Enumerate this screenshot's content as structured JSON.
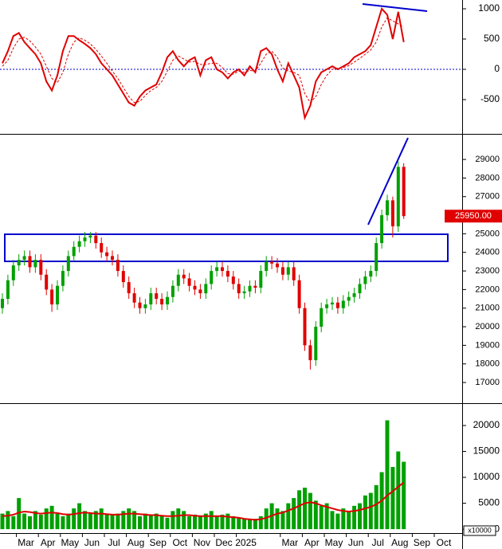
{
  "chart_data": [
    {
      "type": "line",
      "ylim": [
        -1066,
        1145
      ],
      "yticks": [
        -500,
        0,
        500,
        1000
      ],
      "zero_line_color": "#0000cc",
      "series": [
        {
          "color": "#e00000",
          "width": 2,
          "dashed": false,
          "values": [
            100,
            300,
            550,
            600,
            450,
            350,
            250,
            100,
            -200,
            -350,
            -100,
            300,
            550,
            550,
            480,
            420,
            350,
            250,
            100,
            0,
            -100,
            -250,
            -400,
            -550,
            -600,
            -450,
            -350,
            -300,
            -250,
            -50,
            200,
            300,
            150,
            50,
            150,
            200,
            -100,
            150,
            200,
            0,
            -50,
            -150,
            -50,
            0,
            -100,
            50,
            -50,
            300,
            350,
            250,
            0,
            -200,
            100,
            -100,
            -300,
            -800,
            -600,
            -200,
            -50,
            0,
            50,
            0,
            50,
            100,
            200,
            250,
            300,
            400,
            700,
            1000,
            900,
            500,
            950,
            450
          ]
        },
        {
          "color": "#e00000",
          "width": 1,
          "dashed": true,
          "values": [
            50,
            150,
            350,
            500,
            530,
            470,
            370,
            250,
            50,
            -150,
            -220,
            -50,
            250,
            450,
            520,
            480,
            420,
            330,
            220,
            100,
            -30,
            -150,
            -300,
            -450,
            -550,
            -530,
            -430,
            -350,
            -300,
            -200,
            -30,
            150,
            220,
            170,
            120,
            130,
            80,
            80,
            100,
            100,
            30,
            -70,
            -80,
            -30,
            -50,
            -20,
            -30,
            100,
            250,
            300,
            200,
            20,
            -30,
            -50,
            -100,
            -400,
            -550,
            -450,
            -250,
            -100,
            0,
            20,
            30,
            60,
            120,
            180,
            250,
            320,
            450,
            700,
            850,
            800,
            750,
            700
          ]
        }
      ]
    },
    {
      "type": "candlestick",
      "ylim": [
        15930,
        30290
      ],
      "yticks": [
        17000,
        18000,
        19000,
        20000,
        21000,
        22000,
        23000,
        24000,
        25000,
        26000,
        27000,
        28000,
        29000
      ],
      "up_color": "#00a000",
      "down_color": "#e00000",
      "open": [
        21000,
        21500,
        22500,
        23300,
        23600,
        23800,
        23200,
        23600,
        22800,
        22000,
        21200,
        22200,
        23000,
        23800,
        24300,
        24600,
        24800,
        24900,
        24500,
        24000,
        23800,
        23600,
        23000,
        22400,
        21800,
        21300,
        21000,
        21200,
        21800,
        21500,
        21200,
        21600,
        22200,
        22800,
        22600,
        22200,
        22000,
        21800,
        22300,
        23000,
        23200,
        23000,
        22700,
        22300,
        21800,
        21900,
        22200,
        22100,
        23000,
        23500,
        23400,
        23200,
        22800,
        23200,
        22500,
        21000,
        19000,
        18200,
        20000,
        21000,
        21200,
        21300,
        21000,
        21400,
        21600,
        21800,
        22300,
        22700,
        23000,
        24500,
        26000,
        26800,
        25400,
        28600
      ],
      "high": [
        21800,
        22800,
        23600,
        23900,
        24100,
        24100,
        23900,
        23900,
        23100,
        22300,
        22500,
        23300,
        24100,
        24600,
        24900,
        25100,
        25100,
        25100,
        24800,
        24300,
        24100,
        23900,
        23300,
        22700,
        22100,
        21600,
        21500,
        22100,
        22100,
        21800,
        21900,
        22500,
        23100,
        23100,
        22900,
        22500,
        22300,
        22600,
        23300,
        23500,
        23500,
        23300,
        23000,
        22600,
        22200,
        22500,
        22500,
        23300,
        23800,
        23800,
        23700,
        23500,
        23500,
        23500,
        22800,
        21300,
        19300,
        20300,
        21300,
        21500,
        21600,
        21600,
        21700,
        21900,
        22100,
        22600,
        23000,
        23300,
        24800,
        26300,
        27100,
        27000,
        28900,
        28800
      ],
      "low": [
        20700,
        21200,
        22200,
        23000,
        23300,
        22900,
        22900,
        22500,
        21700,
        20800,
        20900,
        21900,
        22700,
        23500,
        24000,
        24300,
        24500,
        24200,
        23700,
        23500,
        23300,
        22700,
        22100,
        21500,
        21000,
        20700,
        20700,
        20900,
        21200,
        20900,
        20900,
        21300,
        21900,
        22300,
        21900,
        21700,
        21500,
        21500,
        22000,
        22700,
        22700,
        22400,
        22000,
        21500,
        21500,
        21600,
        21800,
        21800,
        22700,
        23100,
        22900,
        22500,
        22500,
        22200,
        20700,
        18700,
        17700,
        17900,
        19700,
        20700,
        20900,
        20700,
        20700,
        21100,
        21300,
        21500,
        22000,
        22400,
        22700,
        24200,
        25700,
        24800,
        25100,
        25800
      ],
      "close": [
        21500,
        22500,
        23300,
        23600,
        23800,
        23200,
        23600,
        22800,
        22000,
        21200,
        22200,
        23000,
        23800,
        24300,
        24600,
        24800,
        24900,
        24500,
        24000,
        23800,
        23600,
        23000,
        22400,
        21800,
        21300,
        21000,
        21200,
        21800,
        21500,
        21200,
        21600,
        22200,
        22800,
        22600,
        22200,
        22000,
        21800,
        22300,
        23000,
        23200,
        23000,
        22700,
        22300,
        21800,
        21900,
        22200,
        22100,
        23000,
        23500,
        23400,
        23200,
        22800,
        23200,
        22500,
        21000,
        19000,
        18200,
        20000,
        21000,
        21200,
        21300,
        21000,
        21400,
        21600,
        21800,
        22300,
        22700,
        23000,
        24500,
        26000,
        26800,
        25400,
        28600,
        25950
      ],
      "last_label": "25950.00"
    },
    {
      "type": "bar",
      "ylim": [
        -600,
        24000
      ],
      "yticks": [
        0,
        5000,
        10000,
        15000,
        20000
      ],
      "unit_label": "x10000",
      "categories": [
        null,
        null,
        null,
        null,
        "Mar",
        null,
        null,
        null,
        "Apr",
        null,
        null,
        null,
        "May",
        null,
        null,
        null,
        "Jun",
        null,
        null,
        null,
        "Jul",
        null,
        null,
        null,
        "Aug",
        null,
        null,
        null,
        "Sep",
        null,
        null,
        null,
        "Oct",
        null,
        null,
        null,
        "Nov",
        null,
        null,
        null,
        "Dec",
        null,
        null,
        null,
        "2025",
        null,
        null,
        null,
        null,
        null,
        null,
        null,
        "Mar",
        null,
        null,
        null,
        "Apr",
        null,
        null,
        null,
        "May",
        null,
        null,
        null,
        "Jun",
        null,
        null,
        null,
        "Jul",
        null,
        null,
        null,
        "Aug",
        null,
        null,
        null,
        "Sep",
        null,
        null,
        null,
        "Oct",
        null,
        null,
        null
      ],
      "series": [
        {
          "kind": "bar",
          "color": "#00a000",
          "values": [
            3000,
            3500,
            2500,
            6000,
            3000,
            2500,
            3500,
            2800,
            4000,
            4500,
            3000,
            2500,
            3000,
            4000,
            5000,
            3500,
            3000,
            3500,
            4000,
            3000,
            2800,
            3000,
            3500,
            4000,
            3500,
            2500,
            3000,
            2800,
            3000,
            2500,
            2200,
            3500,
            4000,
            3500,
            2500,
            2800,
            2500,
            3000,
            3500,
            2500,
            2800,
            3000,
            2500,
            2200,
            2000,
            1800,
            2000,
            2500,
            4000,
            5000,
            4000,
            3500,
            5000,
            6000,
            7500,
            8000,
            7000,
            5500,
            4500,
            5000,
            3500,
            3000,
            4000,
            3500,
            4500,
            5000,
            6500,
            7000,
            8500,
            11000,
            21000,
            12000,
            15000,
            13000,
            null,
            null,
            null,
            null,
            null,
            null,
            null,
            null,
            null,
            null
          ]
        },
        {
          "kind": "line",
          "color": "#e00000",
          "values": [
            2500,
            2600,
            2800,
            3200,
            3400,
            3300,
            3100,
            3000,
            3100,
            3200,
            3100,
            2900,
            2800,
            2900,
            3100,
            3200,
            3100,
            3000,
            3000,
            2900,
            2800,
            2800,
            2900,
            3000,
            3000,
            2900,
            2800,
            2700,
            2700,
            2600,
            2500,
            2500,
            2600,
            2700,
            2700,
            2600,
            2500,
            2500,
            2500,
            2500,
            2500,
            2400,
            2300,
            2200,
            2000,
            1900,
            1800,
            1900,
            2200,
            2600,
            3000,
            3200,
            3600,
            4000,
            4500,
            5000,
            5200,
            5000,
            4600,
            4300,
            4000,
            3700,
            3500,
            3400,
            3500,
            3700,
            4000,
            4300,
            4800,
            5500,
            6500,
            7300,
            8200,
            9000,
            null,
            null,
            null,
            null,
            null,
            null,
            null,
            null,
            null,
            null
          ]
        }
      ]
    }
  ]
}
